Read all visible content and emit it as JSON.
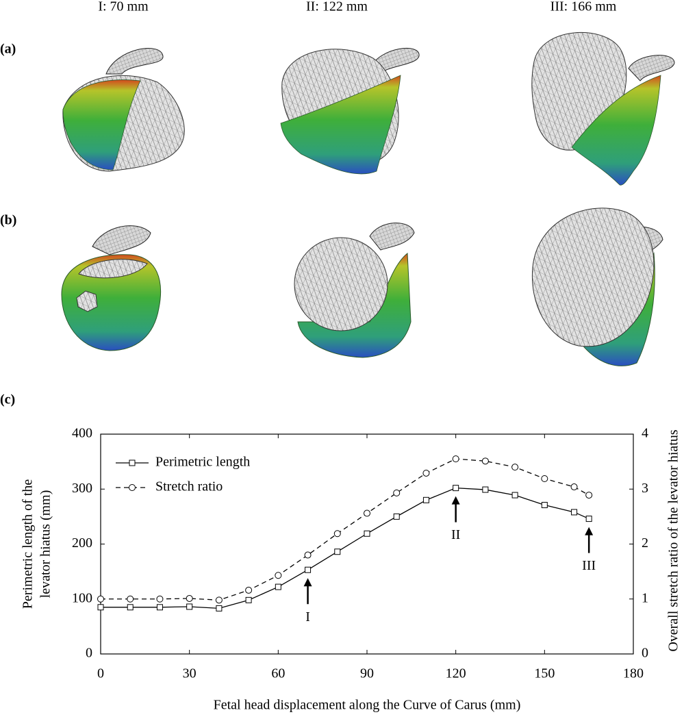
{
  "column_labels": [
    "I: 70 mm",
    "II: 122 mm",
    "III: 166 mm"
  ],
  "panel_labels": [
    "(a)",
    "(b)",
    "(c)"
  ],
  "chart_data": {
    "type": "line",
    "xlabel": "Fetal head displacement along the Curve of Carus (mm)",
    "ylabel": [
      "Perimetric length of the",
      "levator hiatus (mm)"
    ],
    "y2label": "Overall stretch ratio of the levator hiatus",
    "xlim": [
      0,
      180
    ],
    "xticks": [
      0,
      30,
      60,
      90,
      120,
      150,
      180
    ],
    "ylim": [
      0,
      400
    ],
    "yticks": [
      0,
      100,
      200,
      300,
      400
    ],
    "y2lim": [
      0,
      4
    ],
    "y2ticks": [
      0,
      1,
      2,
      3,
      4
    ],
    "legend": "upper-left",
    "x": [
      0,
      10,
      20,
      30,
      40,
      50,
      60,
      70,
      80,
      90,
      100,
      110,
      120,
      130,
      140,
      150,
      160,
      165
    ],
    "series": [
      {
        "name": "Perimetric length",
        "color": "#000000",
        "dash": "solid",
        "marker": "square",
        "values": [
          85,
          85,
          85,
          86,
          83,
          98,
          122,
          153,
          186,
          219,
          250,
          280,
          302,
          299,
          289,
          271,
          258,
          246
        ]
      },
      {
        "name": "Stretch ratio",
        "color": "#000000",
        "dash": "dashed",
        "marker": "circle",
        "axis": "y2",
        "values": [
          1.0,
          1.0,
          1.0,
          1.01,
          0.98,
          1.16,
          1.43,
          1.8,
          2.19,
          2.56,
          2.93,
          3.29,
          3.55,
          3.51,
          3.4,
          3.19,
          3.04,
          2.89
        ]
      }
    ],
    "annotations": [
      {
        "text": "I",
        "x": 70
      },
      {
        "text": "II",
        "x": 120
      },
      {
        "text": "III",
        "x": 165
      }
    ]
  }
}
